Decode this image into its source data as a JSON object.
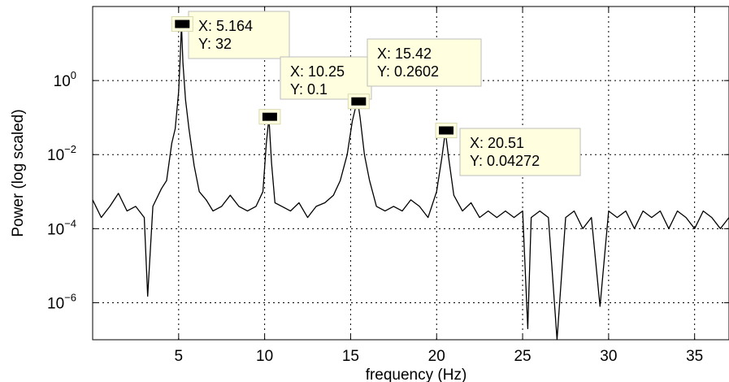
{
  "chart_data": {
    "type": "line",
    "title": "",
    "xlabel": "frequency (Hz)",
    "ylabel": "Power (log scaled)",
    "xlim": [
      0,
      37
    ],
    "ylim": [
      1e-07,
      100
    ],
    "yscale": "log",
    "grid": true,
    "line_color": "#000000",
    "x_ticks": [
      5,
      10,
      15,
      20,
      25,
      30,
      35
    ],
    "x_tick_labels": [
      "5",
      "10",
      "15",
      "20",
      "25",
      "30",
      "35"
    ],
    "y_ticks": [
      1e-06,
      0.0001,
      0.01,
      1
    ],
    "y_tick_labels": [
      {
        "base": "10",
        "exp": "−6"
      },
      {
        "base": "10",
        "exp": "−4"
      },
      {
        "base": "10",
        "exp": "−2"
      },
      {
        "base": "10",
        "exp": "0"
      }
    ],
    "series": [
      {
        "x": [
          0.0,
          0.5,
          1.0,
          1.5,
          2.0,
          2.5,
          3.0,
          3.2,
          3.5,
          4.0,
          4.3,
          4.6,
          4.8,
          5.0,
          5.1,
          5.164,
          5.25,
          5.4,
          5.6,
          5.9,
          6.2,
          6.6,
          7.0,
          7.5,
          8.0,
          8.5,
          9.0,
          9.5,
          9.9,
          10.1,
          10.25,
          10.4,
          10.6,
          11.0,
          11.5,
          12.0,
          12.5,
          13.0,
          13.5,
          14.0,
          14.4,
          14.8,
          15.1,
          15.3,
          15.42,
          15.55,
          15.8,
          16.1,
          16.5,
          17.0,
          17.5,
          18.0,
          18.5,
          19.0,
          19.5,
          20.0,
          20.3,
          20.51,
          20.7,
          21.0,
          21.5,
          22.0,
          22.5,
          23.0,
          23.5,
          24.0,
          24.5,
          25.0,
          25.3,
          25.5,
          26.0,
          26.5,
          27.0,
          27.5,
          28.0,
          28.5,
          29.0,
          29.5,
          30.0,
          30.5,
          31.0,
          31.5,
          32.0,
          32.5,
          33.0,
          33.5,
          34.0,
          34.5,
          35.0,
          35.5,
          36.0,
          36.5,
          37.0
        ],
        "y": [
          0.0006,
          0.0002,
          0.0004,
          0.0009,
          0.0003,
          0.0004,
          0.0002,
          1.5e-06,
          0.0004,
          0.0012,
          0.002,
          0.02,
          0.05,
          0.5,
          5,
          32,
          3,
          0.3,
          0.05,
          0.005,
          0.001,
          0.0006,
          0.0003,
          0.0004,
          0.0008,
          0.0004,
          0.0003,
          0.0004,
          0.001,
          0.02,
          0.1,
          0.006,
          0.0005,
          0.0004,
          0.0003,
          0.0005,
          0.0002,
          0.0004,
          0.0005,
          0.0008,
          0.002,
          0.01,
          0.08,
          0.2,
          0.2602,
          0.1,
          0.01,
          0.002,
          0.0004,
          0.0003,
          0.0004,
          0.0003,
          0.0006,
          0.0004,
          0.0002,
          0.001,
          0.008,
          0.04272,
          0.008,
          0.0008,
          0.0003,
          0.0005,
          0.0002,
          0.0003,
          0.0002,
          0.0003,
          0.0002,
          0.0003,
          2e-07,
          0.0002,
          0.0003,
          0.0002,
          1e-07,
          0.0002,
          0.0003,
          0.0001,
          0.0002,
          8e-07,
          0.0003,
          0.0002,
          0.0003,
          0.0001,
          0.0003,
          0.0002,
          0.0003,
          0.0001,
          0.0003,
          0.0002,
          0.0001,
          0.0003,
          0.0002,
          0.0001,
          0.0002
        ]
      }
    ],
    "datatips": [
      {
        "x": 5.164,
        "y": 32,
        "x_text": "X: 5.164",
        "y_text": "Y: 32"
      },
      {
        "x": 10.25,
        "y": 0.1,
        "x_text": "X: 10.25",
        "y_text": "Y: 0.1"
      },
      {
        "x": 15.42,
        "y": 0.2602,
        "x_text": "X: 15.42",
        "y_text": "Y: 0.2602"
      },
      {
        "x": 20.51,
        "y": 0.04272,
        "x_text": "X: 20.51",
        "y_text": "Y: 0.04272"
      }
    ],
    "datatip_bg": "#ffffe0"
  }
}
